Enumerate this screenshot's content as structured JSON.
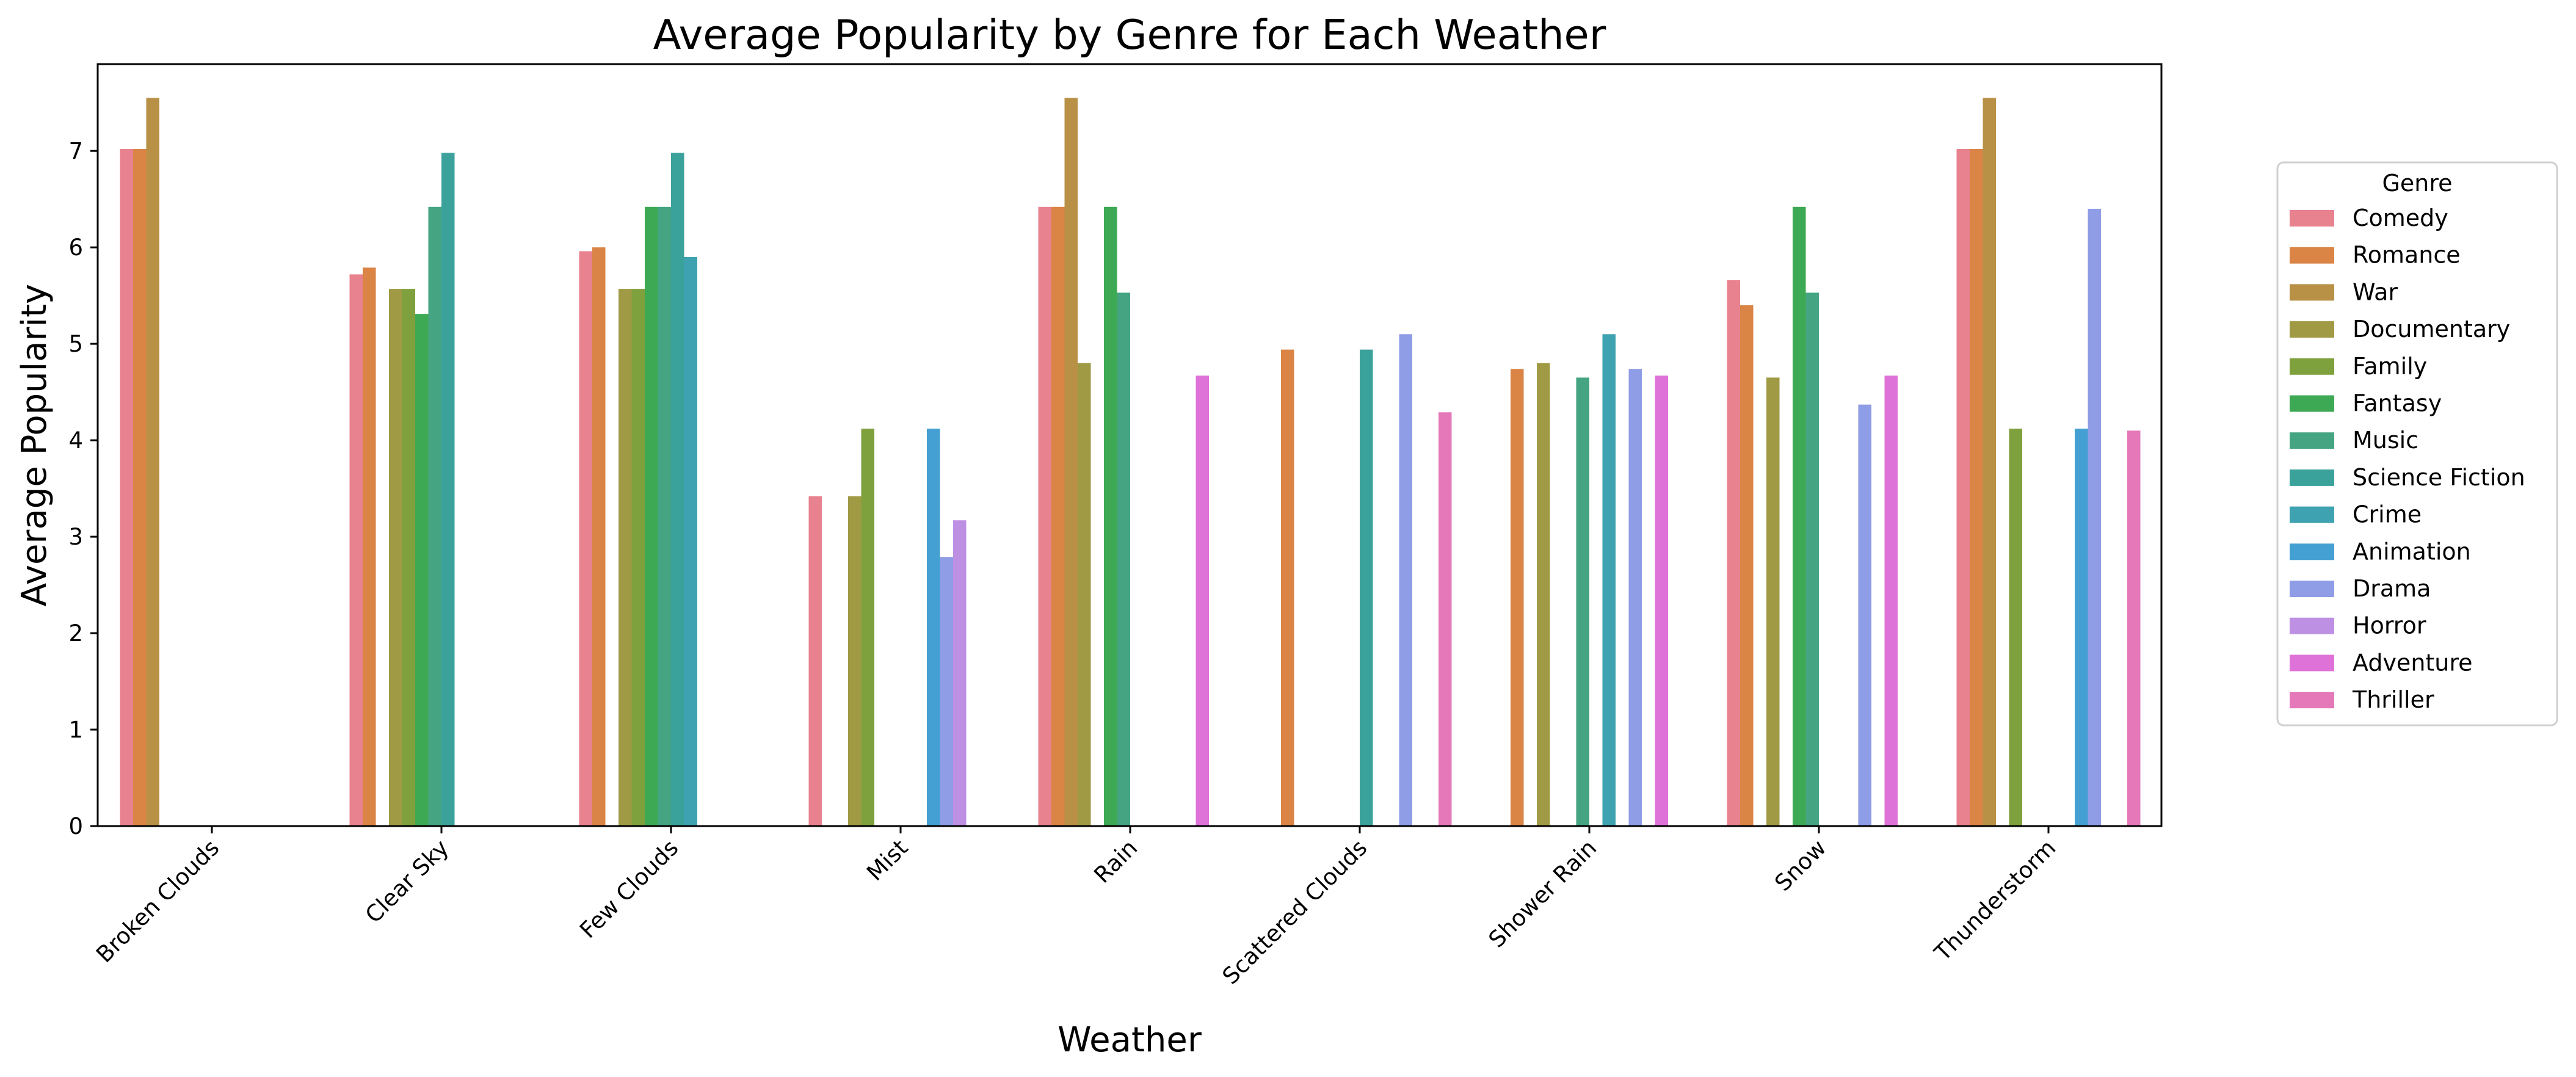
{
  "chart_data": {
    "type": "bar",
    "title": "Average Popularity by Genre for Each Weather",
    "xlabel": "Weather",
    "ylabel": "Average Popularity",
    "ylim": [
      0,
      7.9
    ],
    "yticks": [
      0,
      1,
      2,
      3,
      4,
      5,
      6,
      7
    ],
    "grid": false,
    "legend": {
      "title": "Genre",
      "placement": "right"
    },
    "categories": [
      "Broken Clouds",
      "Clear Sky",
      "Few Clouds",
      "Mist",
      "Rain",
      "Scattered Clouds",
      "Shower Rain",
      "Snow",
      "Thunderstorm"
    ],
    "series": [
      {
        "name": "Comedy",
        "color": "#e8828f",
        "values": [
          7.02,
          5.72,
          5.96,
          3.42,
          6.42,
          null,
          null,
          5.66,
          7.02
        ]
      },
      {
        "name": "Romance",
        "color": "#da8445",
        "values": [
          7.02,
          5.79,
          6.0,
          null,
          6.42,
          4.94,
          4.74,
          5.4,
          7.02
        ]
      },
      {
        "name": "War",
        "color": "#b89146",
        "values": [
          7.55,
          null,
          null,
          null,
          7.55,
          null,
          null,
          null,
          7.55
        ]
      },
      {
        "name": "Documentary",
        "color": "#a09a45",
        "values": [
          null,
          5.57,
          5.57,
          3.42,
          4.8,
          null,
          4.8,
          4.65,
          null
        ]
      },
      {
        "name": "Family",
        "color": "#7fa13d",
        "values": [
          null,
          5.57,
          5.57,
          4.12,
          null,
          null,
          null,
          null,
          4.12
        ]
      },
      {
        "name": "Fantasy",
        "color": "#3ea954",
        "values": [
          null,
          5.31,
          6.42,
          null,
          6.42,
          null,
          null,
          6.42,
          null
        ]
      },
      {
        "name": "Music",
        "color": "#45a582",
        "values": [
          null,
          6.42,
          6.42,
          null,
          5.53,
          null,
          4.65,
          5.53,
          null
        ]
      },
      {
        "name": "Science Fiction",
        "color": "#3ba29b",
        "values": [
          null,
          6.98,
          6.98,
          null,
          null,
          4.94,
          null,
          null,
          null
        ]
      },
      {
        "name": "Crime",
        "color": "#3ea2b0",
        "values": [
          null,
          null,
          5.9,
          null,
          null,
          null,
          5.1,
          null,
          null
        ]
      },
      {
        "name": "Animation",
        "color": "#44a0d2",
        "values": [
          null,
          null,
          null,
          4.12,
          null,
          null,
          null,
          null,
          4.12
        ]
      },
      {
        "name": "Drama",
        "color": "#8f9ce6",
        "values": [
          null,
          null,
          null,
          2.79,
          null,
          5.1,
          4.74,
          4.37,
          6.4
        ]
      },
      {
        "name": "Horror",
        "color": "#bd90e4",
        "values": [
          null,
          null,
          null,
          3.17,
          null,
          null,
          null,
          null,
          null
        ]
      },
      {
        "name": "Adventure",
        "color": "#df72d8",
        "values": [
          null,
          null,
          null,
          null,
          4.67,
          null,
          4.67,
          4.67,
          null
        ]
      },
      {
        "name": "Thriller",
        "color": "#e478b9",
        "values": [
          null,
          null,
          null,
          null,
          null,
          4.29,
          null,
          null,
          4.1
        ]
      }
    ]
  }
}
